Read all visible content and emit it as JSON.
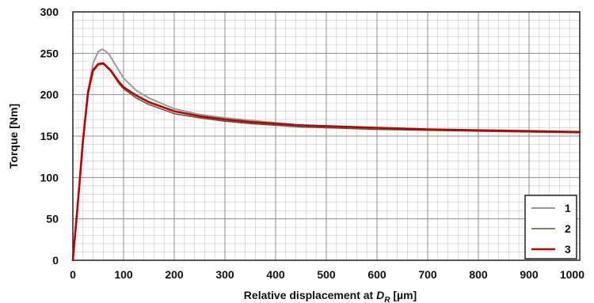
{
  "chart_data": {
    "type": "line",
    "xlabel": {
      "main": "Relative displacement at ",
      "var": "D",
      "sub": "R",
      "unit": " [µm]"
    },
    "ylabel": "Torque [Nm]",
    "xlim": [
      0,
      1000
    ],
    "ylim": [
      0,
      300
    ],
    "x_ticks": [
      0,
      100,
      200,
      300,
      400,
      500,
      600,
      700,
      800,
      900,
      1000
    ],
    "y_ticks": [
      0,
      50,
      100,
      150,
      200,
      250,
      300
    ],
    "grid": true,
    "legend_position": "bottom-right",
    "series": [
      {
        "name": "1",
        "color": "#9a9a9a",
        "stroke": 2,
        "points": [
          [
            0,
            0
          ],
          [
            10,
            70
          ],
          [
            20,
            145
          ],
          [
            30,
            205
          ],
          [
            40,
            238
          ],
          [
            50,
            252
          ],
          [
            58,
            255
          ],
          [
            70,
            250
          ],
          [
            85,
            235
          ],
          [
            100,
            220
          ],
          [
            125,
            205
          ],
          [
            150,
            196
          ],
          [
            200,
            183
          ],
          [
            250,
            176
          ],
          [
            300,
            172
          ],
          [
            350,
            169
          ],
          [
            400,
            166
          ],
          [
            450,
            163
          ],
          [
            500,
            161
          ],
          [
            600,
            159
          ],
          [
            700,
            158
          ],
          [
            800,
            156
          ],
          [
            900,
            155
          ],
          [
            1000,
            154
          ]
        ]
      },
      {
        "name": "2",
        "color": "#4a5a3a",
        "stroke": 1.5,
        "points": [
          [
            0,
            0
          ],
          [
            10,
            70
          ],
          [
            20,
            143
          ],
          [
            30,
            200
          ],
          [
            40,
            228
          ],
          [
            50,
            236
          ],
          [
            60,
            237
          ],
          [
            75,
            228
          ],
          [
            90,
            214
          ],
          [
            100,
            207
          ],
          [
            125,
            196
          ],
          [
            150,
            188
          ],
          [
            200,
            177
          ],
          [
            250,
            172
          ],
          [
            300,
            168
          ],
          [
            350,
            165
          ],
          [
            400,
            163
          ],
          [
            450,
            161
          ],
          [
            500,
            160
          ],
          [
            600,
            158
          ],
          [
            700,
            157
          ],
          [
            800,
            156
          ],
          [
            900,
            155
          ],
          [
            1000,
            154
          ]
        ]
      },
      {
        "name": "3",
        "color": "#c00000",
        "stroke": 2.6,
        "points": [
          [
            0,
            0
          ],
          [
            10,
            70
          ],
          [
            20,
            145
          ],
          [
            30,
            203
          ],
          [
            40,
            230
          ],
          [
            50,
            237
          ],
          [
            60,
            238
          ],
          [
            75,
            229
          ],
          [
            90,
            216
          ],
          [
            100,
            209
          ],
          [
            125,
            199
          ],
          [
            150,
            191
          ],
          [
            200,
            180
          ],
          [
            250,
            174
          ],
          [
            300,
            170
          ],
          [
            350,
            167
          ],
          [
            400,
            165
          ],
          [
            450,
            163
          ],
          [
            500,
            162
          ],
          [
            600,
            160
          ],
          [
            700,
            158
          ],
          [
            800,
            157
          ],
          [
            900,
            156
          ],
          [
            1000,
            155
          ]
        ]
      }
    ]
  }
}
